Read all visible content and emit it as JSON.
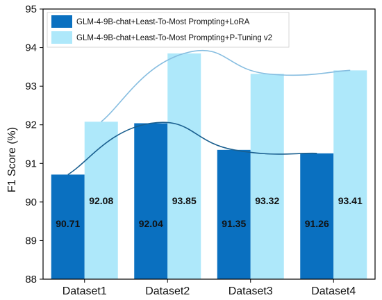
{
  "chart_data": {
    "type": "bar",
    "categories": [
      "Dataset1",
      "Dataset2",
      "Dataset3",
      "Dataset4"
    ],
    "series": [
      {
        "name": "GLM-4-9B-chat+Least-To-Most Prompting+LoRA",
        "values": [
          90.71,
          92.04,
          91.35,
          91.26
        ],
        "color": "#0a70c0",
        "line_color": "#1a5f8f"
      },
      {
        "name": "GLM-4-9B-chat+Least-To-Most Prompting+P-Tuning v2",
        "values": [
          92.08,
          93.85,
          93.32,
          93.41
        ],
        "color": "#aee8fa",
        "line_color": "#86bde0"
      }
    ],
    "data_labels": [
      [
        "90.71",
        "92.04",
        "91.35",
        "91.26"
      ],
      [
        "92.08",
        "93.85",
        "93.32",
        "93.41"
      ]
    ],
    "yticks": [
      "88",
      "89",
      "90",
      "91",
      "92",
      "93",
      "94",
      "95"
    ],
    "ylabel": "F1 Score (%)",
    "xlabel": "",
    "ylim": [
      88,
      95
    ],
    "legend_position": "top-left",
    "grid": false,
    "trend_lines": true
  }
}
